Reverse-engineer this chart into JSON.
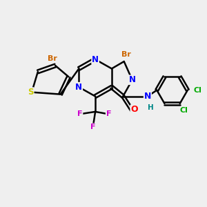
{
  "background_color": "#efefef",
  "bond_color": "#000000",
  "bond_width": 1.8,
  "atom_colors": {
    "Br": "#cc6600",
    "S": "#cccc00",
    "N": "#0000ff",
    "O": "#ff0000",
    "F": "#cc00cc",
    "Cl": "#00aa00",
    "H": "#008888",
    "C": "#000000"
  },
  "font_size": 8.5
}
